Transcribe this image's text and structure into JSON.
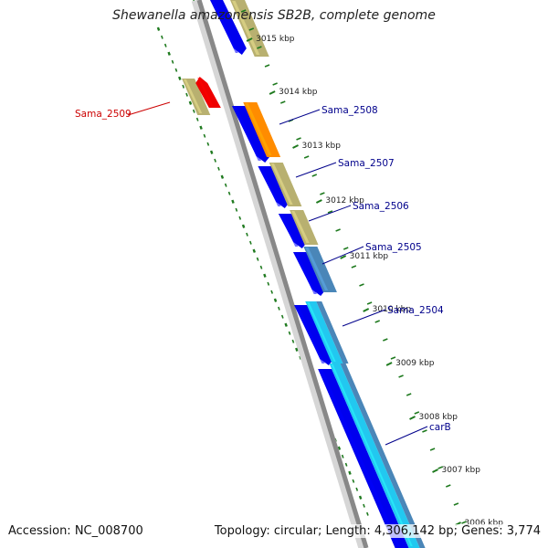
{
  "title": "Shewanella amazonensis SB2B, complete genome",
  "footer": {
    "accession": "Accession: NC_008700",
    "summary": "Topology: circular; Length: 4,306,142 bp; Genes: 3,774"
  },
  "ruler_ticks": [
    "3015 kbp",
    "3014 kbp",
    "3013 kbp",
    "3012 kbp",
    "3011 kbp",
    "3010 kbp",
    "3009 kbp",
    "3008 kbp",
    "3007 kbp",
    "3006 kbp"
  ],
  "gene_labels": [
    {
      "text": "Sama_2509",
      "color": "#cc0000"
    },
    {
      "text": "Sama_2508",
      "color": "#00008b"
    },
    {
      "text": "Sama_2507",
      "color": "#00008b"
    },
    {
      "text": "Sama_2506",
      "color": "#00008b"
    },
    {
      "text": "Sama_2505",
      "color": "#00008b"
    },
    {
      "text": "Sama_2504",
      "color": "#00008b"
    },
    {
      "text": "carB",
      "color": "#00008b"
    }
  ],
  "colors": {
    "cds_blue": "#0000ee",
    "cds_khaki": "#b8b070",
    "cds_orange": "#ff8c00",
    "cds_red": "#ee0000",
    "cds_steel": "#4a86b8",
    "cds_cyan": "#22c8f0",
    "backbone": "#888888",
    "tick_green": "#1f7a1f"
  }
}
